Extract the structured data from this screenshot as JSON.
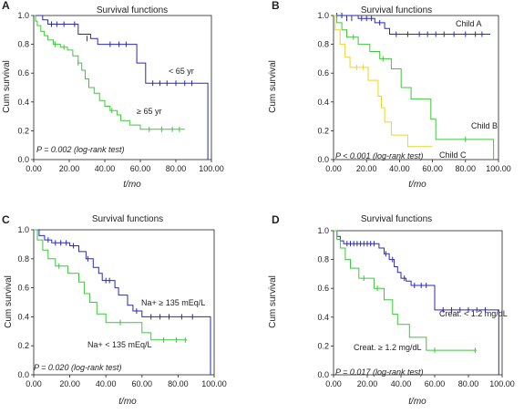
{
  "chart_data": [
    {
      "panel": "A",
      "type": "line",
      "title": "Survival functions",
      "xlabel": "t/mo",
      "ylabel": "Cum survival",
      "xlim": [
        0,
        100
      ],
      "ylim": [
        0,
        1
      ],
      "xticks": [
        "0.00",
        "20.00",
        "40.00",
        "60.00",
        "80.00",
        "100.00"
      ],
      "yticks": [
        "0.0",
        "0.2",
        "0.4",
        "0.6",
        "0.8",
        "1.0"
      ],
      "pvalue": "P = 0.002 (log-rank test)",
      "series": [
        {
          "name": "< 65 yr",
          "color": "#2a2ab8",
          "steps": [
            [
              0,
              1.0
            ],
            [
              5,
              0.97
            ],
            [
              8,
              0.94
            ],
            [
              22,
              0.94
            ],
            [
              25,
              0.87
            ],
            [
              32,
              0.84
            ],
            [
              36,
              0.8
            ],
            [
              55,
              0.8
            ],
            [
              58,
              0.67
            ],
            [
              63,
              0.53
            ],
            [
              95,
              0.53
            ],
            [
              98,
              0.0
            ]
          ],
          "censors": [
            [
              10,
              0.94
            ],
            [
              13,
              0.94
            ],
            [
              17,
              0.94
            ],
            [
              23,
              0.94
            ],
            [
              30,
              0.84
            ],
            [
              43,
              0.8
            ],
            [
              48,
              0.8
            ],
            [
              52,
              0.8
            ],
            [
              67,
              0.53
            ],
            [
              71,
              0.53
            ],
            [
              75,
              0.53
            ],
            [
              80,
              0.53
            ],
            [
              85,
              0.53
            ],
            [
              89,
              0.53
            ]
          ]
        },
        {
          "name": "≥ 65 yr",
          "color": "#3cc83c",
          "steps": [
            [
              0,
              1.0
            ],
            [
              1,
              0.96
            ],
            [
              2,
              0.93
            ],
            [
              4,
              0.89
            ],
            [
              6,
              0.86
            ],
            [
              8,
              0.83
            ],
            [
              11,
              0.8
            ],
            [
              15,
              0.78
            ],
            [
              19,
              0.76
            ],
            [
              22,
              0.72
            ],
            [
              25,
              0.67
            ],
            [
              27,
              0.62
            ],
            [
              29,
              0.56
            ],
            [
              31,
              0.5
            ],
            [
              34,
              0.46
            ],
            [
              37,
              0.41
            ],
            [
              40,
              0.37
            ],
            [
              43,
              0.34
            ],
            [
              47,
              0.31
            ],
            [
              49,
              0.27
            ],
            [
              54,
              0.24
            ],
            [
              60,
              0.21
            ],
            [
              85,
              0.21
            ]
          ],
          "censors": [
            [
              12,
              0.8
            ],
            [
              17,
              0.78
            ],
            [
              25,
              0.67
            ],
            [
              44,
              0.34
            ],
            [
              65,
              0.21
            ],
            [
              72,
              0.21
            ],
            [
              78,
              0.21
            ],
            [
              82,
              0.21
            ]
          ]
        }
      ]
    },
    {
      "panel": "B",
      "type": "line",
      "title": "Survival functions",
      "xlabel": "t/mo",
      "ylabel": "Cum survival",
      "xlim": [
        0,
        100
      ],
      "ylim": [
        0,
        1
      ],
      "xticks": [
        "0.00",
        "20.00",
        "40.00",
        "60.00",
        "80.00",
        "100.00"
      ],
      "yticks": [
        "0.0",
        "0.2",
        "0.4",
        "0.6",
        "0.8",
        "1.0"
      ],
      "pvalue": "P < 0.001 (log-rank test)",
      "series": [
        {
          "name": "Child A",
          "color": "#2a2ab8",
          "steps": [
            [
              0,
              1.0
            ],
            [
              15,
              0.98
            ],
            [
              25,
              0.95
            ],
            [
              31,
              0.91
            ],
            [
              34,
              0.87
            ],
            [
              95,
              0.87
            ]
          ],
          "censors": [
            [
              2,
              1.0
            ],
            [
              5,
              1.0
            ],
            [
              8,
              0.98
            ],
            [
              11,
              0.98
            ],
            [
              17,
              0.98
            ],
            [
              20,
              0.98
            ],
            [
              23,
              0.98
            ],
            [
              28,
              0.95
            ],
            [
              38,
              0.87
            ],
            [
              45,
              0.87
            ],
            [
              52,
              0.87
            ],
            [
              57,
              0.87
            ],
            [
              62,
              0.87
            ],
            [
              67,
              0.87
            ],
            [
              73,
              0.87
            ],
            [
              80,
              0.87
            ],
            [
              86,
              0.87
            ],
            [
              90,
              0.87
            ]
          ]
        },
        {
          "name": "Child B",
          "color": "#3cc83c",
          "steps": [
            [
              0,
              1.0
            ],
            [
              2,
              0.95
            ],
            [
              5,
              0.9
            ],
            [
              8,
              0.85
            ],
            [
              15,
              0.8
            ],
            [
              22,
              0.75
            ],
            [
              28,
              0.7
            ],
            [
              35,
              0.63
            ],
            [
              41,
              0.5
            ],
            [
              47,
              0.42
            ],
            [
              59,
              0.28
            ],
            [
              62,
              0.14
            ],
            [
              95,
              0.14
            ],
            [
              97,
              0.0
            ]
          ],
          "censors": [
            [
              12,
              0.85
            ],
            [
              30,
              0.7
            ],
            [
              80,
              0.14
            ]
          ]
        },
        {
          "name": "Child C",
          "color": "#e8d62a",
          "steps": [
            [
              0,
              1.0
            ],
            [
              1,
              0.9
            ],
            [
              4,
              0.8
            ],
            [
              7,
              0.71
            ],
            [
              10,
              0.64
            ],
            [
              21,
              0.55
            ],
            [
              27,
              0.44
            ],
            [
              29,
              0.36
            ],
            [
              31,
              0.26
            ],
            [
              35,
              0.17
            ],
            [
              45,
              0.09
            ],
            [
              60,
              0.09
            ]
          ],
          "censors": [
            [
              14,
              0.64
            ],
            [
              18,
              0.64
            ]
          ]
        }
      ]
    },
    {
      "panel": "C",
      "type": "line",
      "title": "Survival functions",
      "xlabel": "t/mo",
      "ylabel": "Cum survival",
      "xlim": [
        0,
        100
      ],
      "ylim": [
        0,
        1
      ],
      "xticks": [
        "0.00",
        "20.00",
        "40.00",
        "60.00",
        "80.00",
        "100.00"
      ],
      "yticks": [
        "0.0",
        "0.2",
        "0.4",
        "0.6",
        "0.8",
        "1.0"
      ],
      "pvalue": "P = 0.020 (log-rank test)",
      "series": [
        {
          "name": "Na+ ≥ 135 mEq/L",
          "color": "#2a2ab8",
          "steps": [
            [
              0,
              1.0
            ],
            [
              3,
              0.96
            ],
            [
              6,
              0.93
            ],
            [
              10,
              0.91
            ],
            [
              20,
              0.89
            ],
            [
              25,
              0.85
            ],
            [
              29,
              0.8
            ],
            [
              33,
              0.74
            ],
            [
              36,
              0.7
            ],
            [
              38,
              0.65
            ],
            [
              45,
              0.6
            ],
            [
              47,
              0.55
            ],
            [
              52,
              0.48
            ],
            [
              55,
              0.44
            ],
            [
              60,
              0.4
            ],
            [
              95,
              0.4
            ],
            [
              98,
              0.0
            ]
          ],
          "censors": [
            [
              8,
              0.93
            ],
            [
              12,
              0.91
            ],
            [
              15,
              0.91
            ],
            [
              18,
              0.91
            ],
            [
              22,
              0.89
            ],
            [
              30,
              0.8
            ],
            [
              40,
              0.65
            ],
            [
              42,
              0.65
            ],
            [
              57,
              0.44
            ],
            [
              65,
              0.4
            ],
            [
              70,
              0.4
            ],
            [
              75,
              0.4
            ],
            [
              82,
              0.4
            ],
            [
              88,
              0.4
            ]
          ]
        },
        {
          "name": "Na+ < 135 mEq/L",
          "color": "#3cc83c",
          "steps": [
            [
              0,
              1.0
            ],
            [
              2,
              0.93
            ],
            [
              5,
              0.86
            ],
            [
              8,
              0.8
            ],
            [
              12,
              0.75
            ],
            [
              19,
              0.7
            ],
            [
              25,
              0.64
            ],
            [
              28,
              0.56
            ],
            [
              31,
              0.5
            ],
            [
              35,
              0.42
            ],
            [
              40,
              0.36
            ],
            [
              60,
              0.29
            ],
            [
              65,
              0.24
            ],
            [
              85,
              0.24
            ]
          ],
          "censors": [
            [
              14,
              0.75
            ],
            [
              48,
              0.36
            ],
            [
              72,
              0.24
            ],
            [
              79,
              0.24
            ],
            [
              84,
              0.24
            ]
          ]
        }
      ]
    },
    {
      "panel": "D",
      "type": "line",
      "title": "Survival functions",
      "xlabel": "t/mo",
      "ylabel": "Cum survival",
      "xlim": [
        0,
        100
      ],
      "ylim": [
        0,
        1
      ],
      "xticks": [
        "0.00",
        "20.00",
        "40.00",
        "60.00",
        "80.00",
        "100.00"
      ],
      "yticks": [
        "0.0",
        "0.2",
        "0.4",
        "0.6",
        "0.8",
        "1.0"
      ],
      "pvalue": "P = 0.017 (log-rank test)",
      "series": [
        {
          "name": "Creat. < 1.2 mg/dL",
          "color": "#2a2ab8",
          "steps": [
            [
              0,
              1.0
            ],
            [
              2,
              0.96
            ],
            [
              4,
              0.93
            ],
            [
              6,
              0.91
            ],
            [
              27,
              0.88
            ],
            [
              30,
              0.84
            ],
            [
              33,
              0.8
            ],
            [
              36,
              0.75
            ],
            [
              38,
              0.71
            ],
            [
              40,
              0.67
            ],
            [
              43,
              0.65
            ],
            [
              46,
              0.62
            ],
            [
              60,
              0.45
            ],
            [
              95,
              0.45
            ],
            [
              98,
              0.0
            ]
          ],
          "censors": [
            [
              8,
              0.91
            ],
            [
              10,
              0.91
            ],
            [
              12,
              0.91
            ],
            [
              14,
              0.91
            ],
            [
              16,
              0.91
            ],
            [
              18,
              0.91
            ],
            [
              20,
              0.91
            ],
            [
              22,
              0.91
            ],
            [
              24,
              0.91
            ],
            [
              31,
              0.84
            ],
            [
              35,
              0.8
            ],
            [
              42,
              0.67
            ],
            [
              48,
              0.62
            ],
            [
              52,
              0.62
            ],
            [
              55,
              0.62
            ],
            [
              65,
              0.45
            ],
            [
              70,
              0.45
            ],
            [
              75,
              0.45
            ],
            [
              80,
              0.45
            ],
            [
              85,
              0.45
            ],
            [
              90,
              0.45
            ]
          ]
        },
        {
          "name": "Creat. ≥ 1.2 mg/dL",
          "color": "#3cc83c",
          "steps": [
            [
              0,
              1.0
            ],
            [
              2,
              0.94
            ],
            [
              4,
              0.88
            ],
            [
              7,
              0.8
            ],
            [
              10,
              0.74
            ],
            [
              15,
              0.67
            ],
            [
              24,
              0.6
            ],
            [
              30,
              0.52
            ],
            [
              35,
              0.42
            ],
            [
              38,
              0.35
            ],
            [
              45,
              0.26
            ],
            [
              55,
              0.17
            ],
            [
              85,
              0.17
            ]
          ],
          "censors": [
            [
              18,
              0.67
            ],
            [
              26,
              0.6
            ],
            [
              60,
              0.17
            ],
            [
              84,
              0.17
            ]
          ]
        }
      ]
    }
  ]
}
